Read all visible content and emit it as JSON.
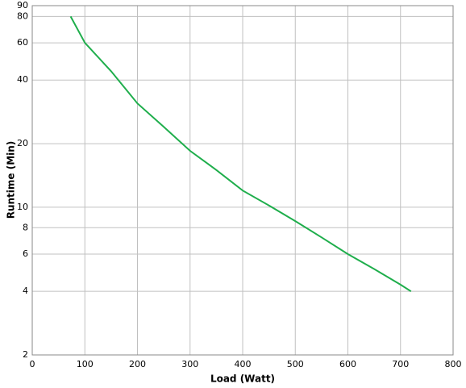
{
  "chart_data": {
    "type": "line",
    "x_label": "Load (Watt)",
    "y_label": "Runtime (Min)",
    "x": [
      73,
      100,
      150,
      200,
      250,
      300,
      350,
      400,
      450,
      500,
      550,
      600,
      650,
      700,
      720
    ],
    "series": [
      {
        "color": "#1fae4c",
        "values": [
          80,
          60,
          44,
          31,
          24,
          18.5,
          15,
          12,
          10.2,
          8.6,
          7.2,
          6,
          5.1,
          4.3,
          4
        ]
      }
    ],
    "xlim": [
      0,
      800
    ],
    "xticks": [
      0,
      100,
      200,
      300,
      400,
      500,
      600,
      700,
      800
    ],
    "ylim": [
      2,
      90
    ],
    "yticks": [
      2,
      4,
      6,
      8,
      10,
      20,
      40,
      60,
      80,
      90
    ],
    "y_log": true,
    "grid": true
  }
}
